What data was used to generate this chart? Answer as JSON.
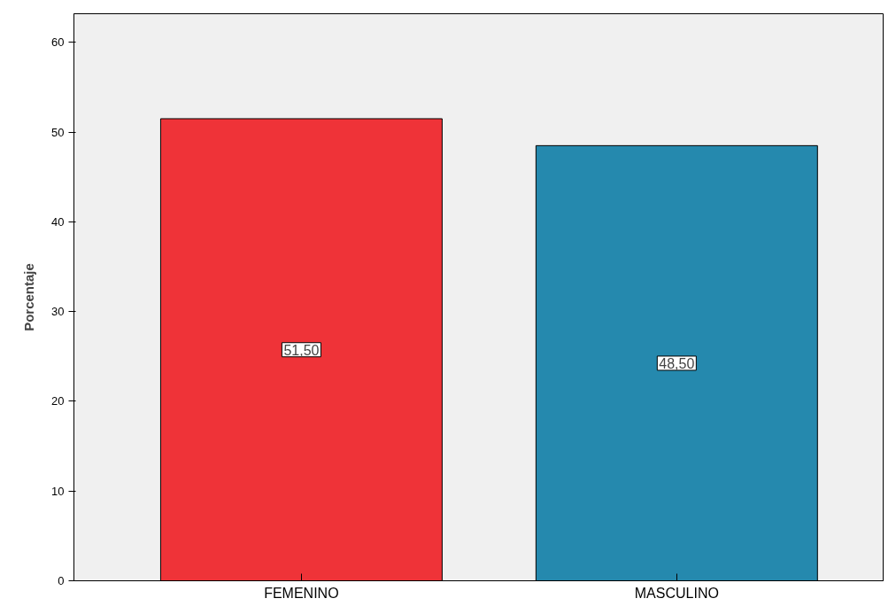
{
  "chart_data": {
    "type": "bar",
    "ylabel": "Porcentaje",
    "categories": [
      "FEMENINO",
      "MASCULINO"
    ],
    "values": [
      51.5,
      48.5
    ],
    "colors": [
      "#ef3338",
      "#2589ae"
    ],
    "value_labels": [
      "51,50",
      "48,50"
    ],
    "ylim": [
      0,
      63.2
    ],
    "yticks": [
      0,
      10,
      20,
      30,
      40,
      50,
      60
    ],
    "grid": false
  }
}
